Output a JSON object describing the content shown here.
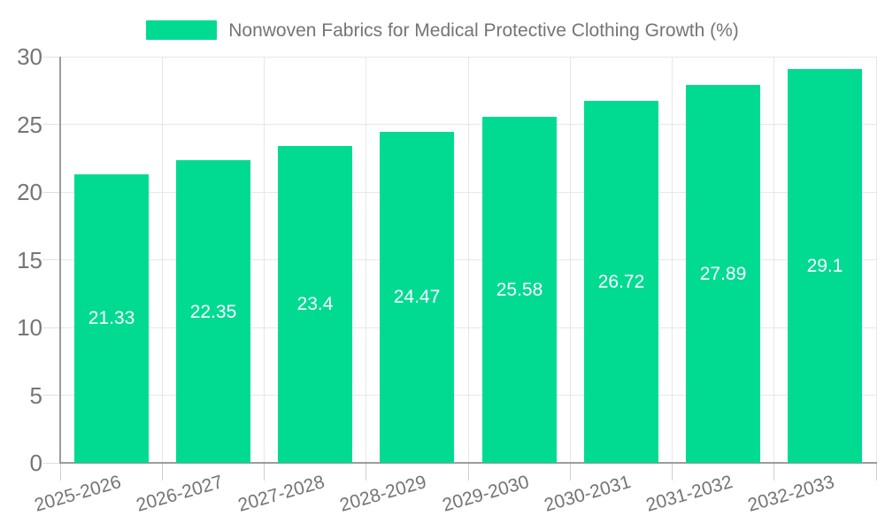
{
  "chart_data": {
    "type": "bar",
    "title": "Nonwoven Fabrics for Medical Protective Clothing Growth (%)",
    "categories": [
      "2025-2026",
      "2026-2027",
      "2027-2028",
      "2028-2029",
      "2029-2030",
      "2030-2031",
      "2031-2032",
      "2032-2033"
    ],
    "values": [
      21.33,
      22.35,
      23.4,
      24.47,
      25.58,
      26.72,
      27.89,
      29.1
    ],
    "value_labels": [
      "21.33",
      "22.35",
      "23.4",
      "24.47",
      "25.58",
      "26.72",
      "27.89",
      "29.1"
    ],
    "xlabel": "",
    "ylabel": "",
    "ylim": [
      0,
      30
    ],
    "ytick_step": 5,
    "ytick_labels": [
      "0",
      "5",
      "10",
      "15",
      "20",
      "25",
      "30"
    ],
    "grid": "horizontal and vertical gridlines on",
    "legend_position": "top-center",
    "value_label_position": "inside-center",
    "colors": {
      "bar": "#01DB91",
      "grid_line": "#e7e7e7",
      "axis_line": "#9c9c9c",
      "ytick_mark": "#e0e0e0",
      "xtick_mark": "#cfcfcf",
      "axis_text": "#757575",
      "legend_text": "#757575",
      "value_label_text": "#ffffff",
      "background": "#ffffff"
    }
  }
}
